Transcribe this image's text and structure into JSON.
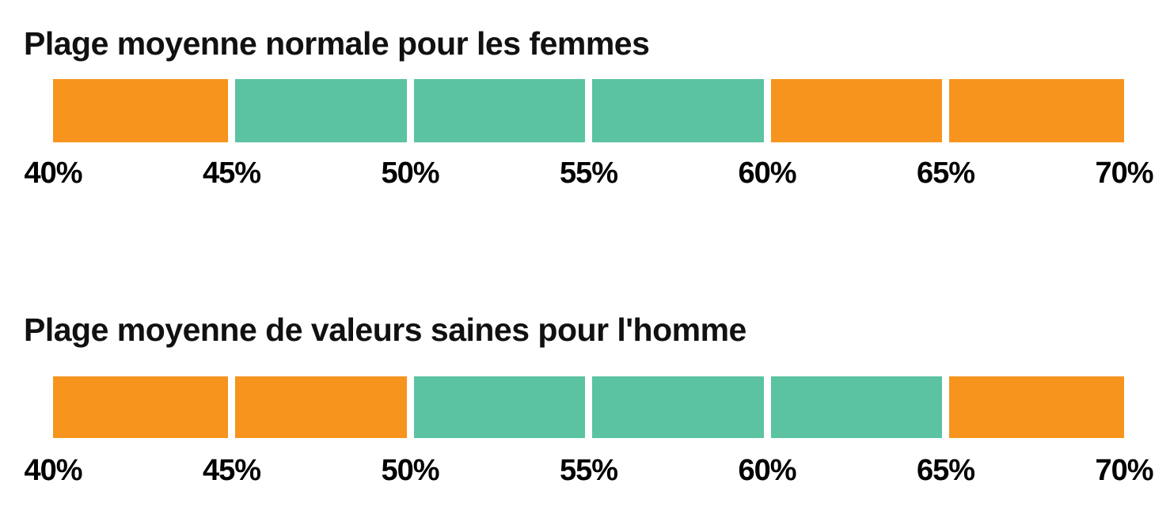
{
  "page": {
    "background": "#ffffff"
  },
  "colors": {
    "in_range": "#5BC3A1",
    "out_of_range": "#F6941E",
    "text": "#111111"
  },
  "chart_data": [
    {
      "type": "bar",
      "subtype": "segmented-range-strip",
      "title": "Plage moyenne normale pour les femmes",
      "xlabel": "",
      "ylabel": "",
      "xlim": [
        40,
        70
      ],
      "unit": "%",
      "grid": false,
      "legend": "none",
      "tick_values": [
        40,
        45,
        50,
        55,
        60,
        65,
        70
      ],
      "tick_labels": [
        "40%",
        "45%",
        "50%",
        "55%",
        "60%",
        "65%",
        "70%"
      ],
      "healthy_range": {
        "from": 45,
        "to": 60
      },
      "segments": [
        {
          "from": 40,
          "to": 45,
          "state": "out-of-range",
          "color": "#F6941E"
        },
        {
          "from": 45,
          "to": 50,
          "state": "in-range",
          "color": "#5BC3A1"
        },
        {
          "from": 50,
          "to": 55,
          "state": "in-range",
          "color": "#5BC3A1"
        },
        {
          "from": 55,
          "to": 60,
          "state": "in-range",
          "color": "#5BC3A1"
        },
        {
          "from": 60,
          "to": 65,
          "state": "out-of-range",
          "color": "#F6941E"
        },
        {
          "from": 65,
          "to": 70,
          "state": "out-of-range",
          "color": "#F6941E"
        }
      ]
    },
    {
      "type": "bar",
      "subtype": "segmented-range-strip",
      "title": "Plage moyenne de valeurs saines pour l'homme",
      "xlabel": "",
      "ylabel": "",
      "xlim": [
        40,
        70
      ],
      "unit": "%",
      "grid": false,
      "legend": "none",
      "tick_values": [
        40,
        45,
        50,
        55,
        60,
        65,
        70
      ],
      "tick_labels": [
        "40%",
        "45%",
        "50%",
        "55%",
        "60%",
        "65%",
        "70%"
      ],
      "healthy_range": {
        "from": 50,
        "to": 65
      },
      "segments": [
        {
          "from": 40,
          "to": 45,
          "state": "out-of-range",
          "color": "#F6941E"
        },
        {
          "from": 45,
          "to": 50,
          "state": "out-of-range",
          "color": "#F6941E"
        },
        {
          "from": 50,
          "to": 55,
          "state": "in-range",
          "color": "#5BC3A1"
        },
        {
          "from": 55,
          "to": 60,
          "state": "in-range",
          "color": "#5BC3A1"
        },
        {
          "from": 60,
          "to": 65,
          "state": "in-range",
          "color": "#5BC3A1"
        },
        {
          "from": 65,
          "to": 70,
          "state": "out-of-range",
          "color": "#F6941E"
        }
      ]
    }
  ]
}
